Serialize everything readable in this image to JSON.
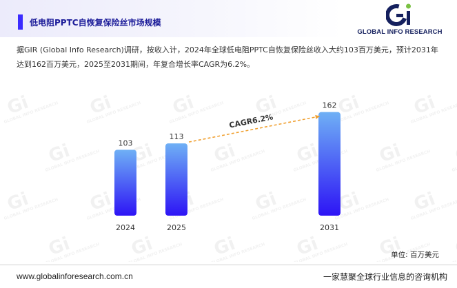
{
  "header": {
    "title": "低电阻PPTC自恢复保险丝市场规模",
    "logo_text": "GLOBAL INFO RESEARCH",
    "accent_color": "#3b2bff"
  },
  "summary": "据GIR (Global Info Research)调研，按收入计，2024年全球低电阻PPTC自恢复保险丝收入大约103百万美元，预计2031年达到162百万美元，2025至2031期间，年复合增长率CAGR为6.2%。",
  "chart_data": {
    "type": "bar",
    "categories": [
      "2024",
      "2025",
      "2031"
    ],
    "values": [
      103,
      113,
      162
    ],
    "ylim": [
      0,
      180
    ],
    "grid": false,
    "legend": "none",
    "annotation": {
      "text": "CAGR6.2%",
      "from": "2025",
      "to": "2031"
    },
    "unit": "单位: 百万美元",
    "colors": {
      "bar_top": "#6fb0f5",
      "bar_bottom": "#2d14f5",
      "annotation_line": "#f0a030"
    }
  },
  "watermark": {
    "mark": "Gi",
    "text": "GLOBAL INFO RESEARCH"
  },
  "footer": {
    "url": "www.globalinforesearch.com.cn",
    "slogan": "一家慧聚全球行业信息的咨询机构"
  }
}
